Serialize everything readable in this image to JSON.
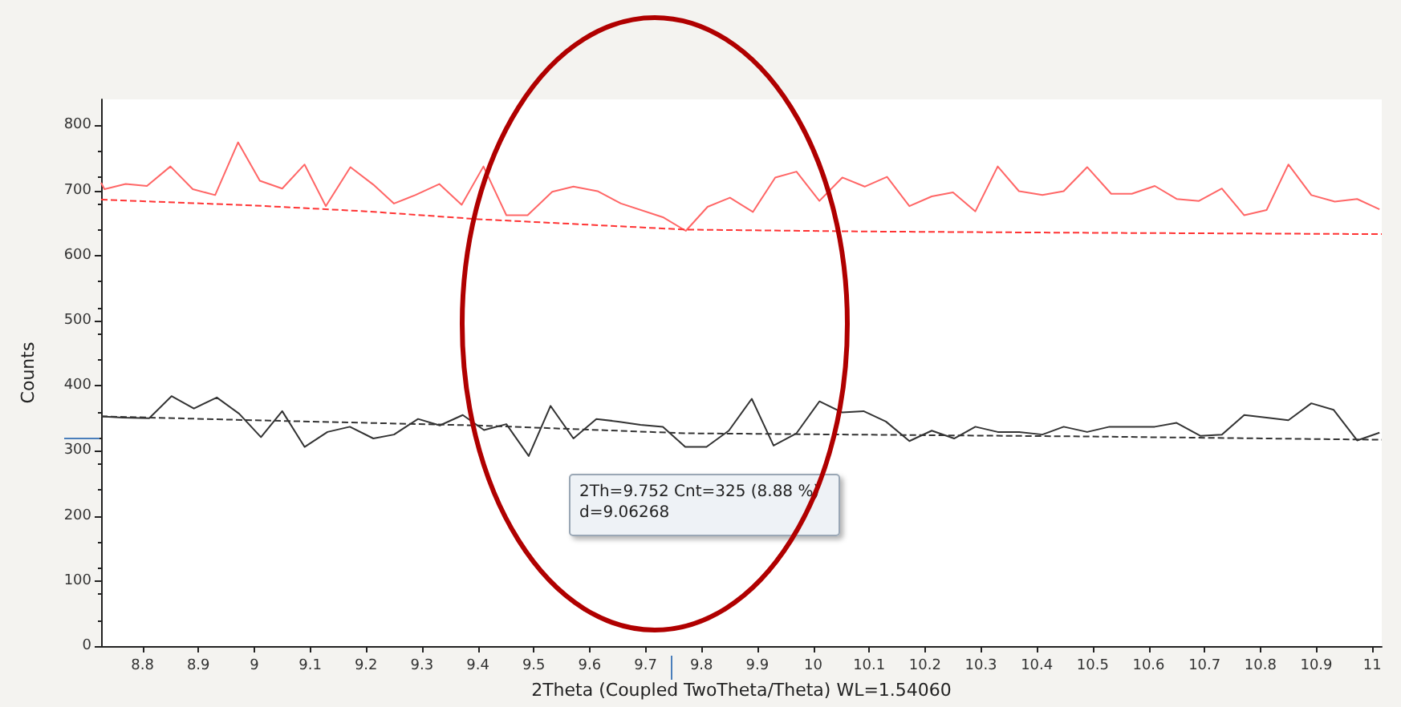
{
  "chart_data": {
    "type": "line",
    "xlabel": "2Theta (Coupled TwoTheta/Theta) WL=1.54060",
    "ylabel": "Counts",
    "xlim": [
      8.726,
      11.017
    ],
    "xticks": [
      8.8,
      8.9,
      9,
      9.1,
      9.2,
      9.3,
      9.4,
      9.5,
      9.6,
      9.7,
      9.8,
      9.9,
      10,
      10.1,
      10.2,
      10.3,
      10.4,
      10.5,
      10.6,
      10.7,
      10.8,
      10.9,
      11
    ],
    "ylim": [
      0,
      840
    ],
    "yticks": [
      0,
      100,
      200,
      300,
      400,
      500,
      600,
      700,
      800
    ],
    "grid": false,
    "marker": "none",
    "annotations": [
      "2Th=9.752 Cnt=325 (8.88 %)",
      "d=9.06268"
    ],
    "series": [
      {
        "color": "#ff6666",
        "line_style": "solid",
        "x": [
          8.726,
          8.732,
          8.77,
          8.808,
          8.85,
          8.89,
          8.93,
          8.971,
          9.01,
          9.05,
          9.09,
          9.128,
          9.172,
          9.213,
          9.25,
          9.288,
          9.331,
          9.371,
          9.41,
          9.451,
          9.489,
          9.533,
          9.571,
          9.614,
          9.656,
          9.731,
          9.772,
          9.811,
          9.851,
          9.892,
          9.932,
          9.97,
          10.011,
          10.052,
          10.092,
          10.132,
          10.172,
          10.212,
          10.25,
          10.29,
          10.33,
          10.368,
          10.41,
          10.448,
          10.49,
          10.533,
          10.57,
          10.611,
          10.65,
          10.69,
          10.731,
          10.771,
          10.811,
          10.85,
          10.891,
          10.933,
          10.973,
          11.013
        ],
        "values": [
          712,
          702,
          710,
          707,
          737,
          702,
          693,
          774,
          715,
          703,
          740,
          676,
          736,
          709,
          680,
          693,
          710,
          678,
          737,
          662,
          662,
          698,
          706,
          699,
          680,
          659,
          638,
          675,
          689,
          667,
          720,
          729,
          684,
          720,
          706,
          721,
          676,
          691,
          697,
          668,
          737,
          699,
          693,
          699,
          736,
          695,
          695,
          707,
          687,
          684,
          703,
          662,
          670,
          740,
          693,
          683,
          687,
          671
        ]
      },
      {
        "color": "#ff3333",
        "line_style": "dashed",
        "x": [
          8.726,
          9.0,
          9.2,
          9.4,
          9.77,
          10.1,
          10.5,
          11.017
        ],
        "values": [
          686,
          677,
          668,
          656,
          640,
          637,
          635,
          633
        ]
      },
      {
        "color": "#333333",
        "line_style": "solid",
        "x": [
          8.727,
          8.765,
          8.812,
          8.852,
          8.892,
          8.933,
          8.973,
          9.012,
          9.05,
          9.09,
          9.131,
          9.171,
          9.213,
          9.25,
          9.293,
          9.332,
          9.373,
          9.411,
          9.451,
          9.491,
          9.53,
          9.571,
          9.612,
          9.651,
          9.691,
          9.731,
          9.771,
          9.809,
          9.849,
          9.89,
          9.929,
          9.97,
          10.011,
          10.052,
          10.09,
          10.13,
          10.172,
          10.212,
          10.252,
          10.29,
          10.33,
          10.368,
          10.41,
          10.448,
          10.49,
          10.53,
          10.57,
          10.611,
          10.65,
          10.693,
          10.731,
          10.771,
          10.811,
          10.85,
          10.891,
          10.931,
          10.973,
          11.013
        ],
        "values": [
          353,
          351,
          350,
          384,
          365,
          382,
          357,
          321,
          361,
          306,
          329,
          337,
          319,
          325,
          349,
          339,
          355,
          332,
          341,
          292,
          369,
          319,
          349,
          345,
          340,
          337,
          306,
          306,
          331,
          380,
          308,
          327,
          376,
          359,
          361,
          345,
          315,
          331,
          319,
          337,
          329,
          329,
          325,
          337,
          329,
          337,
          337,
          337,
          343,
          323,
          325,
          355,
          351,
          347,
          373,
          363,
          316,
          328
        ]
      },
      {
        "color": "#333333",
        "line_style": "dashed",
        "x": [
          8.726,
          9.0,
          9.4,
          9.77,
          10.5,
          11.017
        ],
        "values": [
          353,
          347,
          339,
          327,
          322,
          317
        ]
      }
    ]
  }
}
